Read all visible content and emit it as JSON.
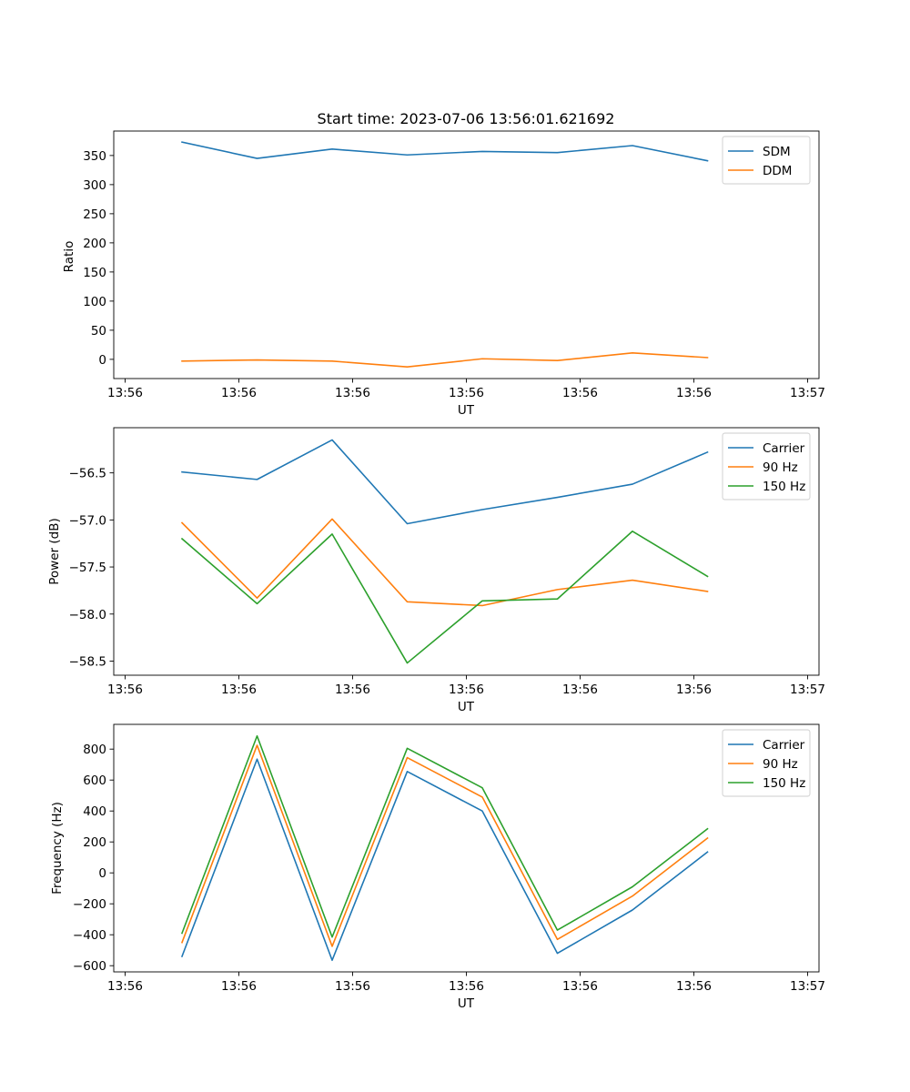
{
  "chart_data": [
    {
      "type": "line",
      "title": "Start time: 2023-07-06 13:56:01.621692",
      "xlabel": "UT",
      "ylabel": "Ratio",
      "xlim": [
        -0.6,
        5.6
      ],
      "ylim": [
        -33,
        392
      ],
      "x": [
        0,
        0.66,
        1.32,
        1.98,
        2.64,
        3.3,
        3.96,
        4.62
      ],
      "xticks": [
        -0.5,
        0.5,
        1.5,
        2.5,
        3.5,
        4.5,
        5.5
      ],
      "xtick_labels": [
        "13:56",
        "13:56",
        "13:56",
        "13:56",
        "13:56",
        "13:56",
        "13:57"
      ],
      "yticks": [
        0,
        50,
        100,
        150,
        200,
        250,
        300,
        350
      ],
      "ytick_labels": [
        "0",
        "50",
        "100",
        "150",
        "200",
        "250",
        "300",
        "350"
      ],
      "legend": "top-right",
      "series": [
        {
          "name": "SDM",
          "color": "#1f77b4",
          "values": [
            373,
            345,
            361,
            351,
            357,
            355,
            367,
            341
          ]
        },
        {
          "name": "DDM",
          "color": "#ff7f0e",
          "values": [
            -3,
            -1,
            -3,
            -13,
            1,
            -2,
            11,
            3
          ]
        }
      ]
    },
    {
      "type": "line",
      "title": "",
      "xlabel": "UT",
      "ylabel": "Power (dB)",
      "xlim": [
        -0.6,
        5.6
      ],
      "ylim": [
        -58.65,
        -56.02
      ],
      "x": [
        0,
        0.66,
        1.32,
        1.98,
        2.64,
        3.3,
        3.96,
        4.62
      ],
      "xticks": [
        -0.5,
        0.5,
        1.5,
        2.5,
        3.5,
        4.5,
        5.5
      ],
      "xtick_labels": [
        "13:56",
        "13:56",
        "13:56",
        "13:56",
        "13:56",
        "13:56",
        "13:57"
      ],
      "yticks": [
        -58.5,
        -58.0,
        -57.5,
        -57.0,
        -56.5
      ],
      "ytick_labels": [
        "−58.5",
        "−58.0",
        "−57.5",
        "−57.0",
        "−56.5"
      ],
      "legend": "top-right",
      "series": [
        {
          "name": "Carrier",
          "color": "#1f77b4",
          "values": [
            -56.49,
            -56.57,
            -56.15,
            -57.04,
            -56.89,
            -56.76,
            -56.62,
            -56.28
          ]
        },
        {
          "name": "90 Hz",
          "color": "#ff7f0e",
          "values": [
            -57.03,
            -57.83,
            -56.99,
            -57.87,
            -57.91,
            -57.74,
            -57.64,
            -57.76
          ]
        },
        {
          "name": "150 Hz",
          "color": "#2ca02c",
          "values": [
            -57.2,
            -57.89,
            -57.15,
            -58.52,
            -57.86,
            -57.84,
            -57.12,
            -57.6
          ]
        }
      ]
    },
    {
      "type": "line",
      "title": "",
      "xlabel": "UT",
      "ylabel": "Frequency (Hz)",
      "xlim": [
        -0.6,
        5.6
      ],
      "ylim": [
        -640,
        960
      ],
      "x": [
        0,
        0.66,
        1.32,
        1.98,
        2.64,
        3.3,
        3.96,
        4.62
      ],
      "xticks": [
        -0.5,
        0.5,
        1.5,
        2.5,
        3.5,
        4.5,
        5.5
      ],
      "xtick_labels": [
        "13:56",
        "13:56",
        "13:56",
        "13:56",
        "13:56",
        "13:56",
        "13:57"
      ],
      "yticks": [
        -600,
        -400,
        -200,
        0,
        200,
        400,
        600,
        800
      ],
      "ytick_labels": [
        "−600",
        "−400",
        "−200",
        "0",
        "200",
        "400",
        "600",
        "800"
      ],
      "legend": "top-right",
      "series": [
        {
          "name": "Carrier",
          "color": "#1f77b4",
          "values": [
            -540,
            735,
            -565,
            655,
            400,
            -520,
            -240,
            135
          ]
        },
        {
          "name": "90 Hz",
          "color": "#ff7f0e",
          "values": [
            -450,
            825,
            -475,
            745,
            490,
            -430,
            -150,
            225
          ]
        },
        {
          "name": "150 Hz",
          "color": "#2ca02c",
          "values": [
            -390,
            885,
            -415,
            805,
            550,
            -370,
            -90,
            285
          ]
        }
      ]
    }
  ]
}
